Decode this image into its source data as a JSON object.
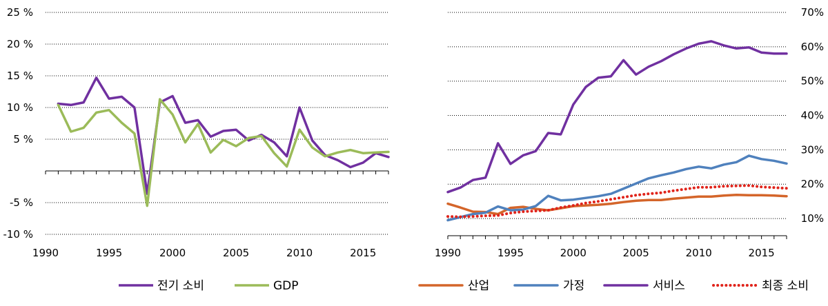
{
  "chart_data": [
    {
      "type": "line",
      "x": [
        1991,
        1992,
        1993,
        1994,
        1995,
        1996,
        1997,
        1998,
        1999,
        2000,
        2001,
        2002,
        2003,
        2004,
        2005,
        2006,
        2007,
        2008,
        2009,
        2010,
        2011,
        2012,
        2013,
        2014,
        2015,
        2016,
        2017
      ],
      "series": [
        {
          "name": "전기 소비",
          "color": "#7030A0",
          "values": [
            10.6,
            10.4,
            10.8,
            14.7,
            11.4,
            11.7,
            10.0,
            -3.6,
            10.8,
            11.8,
            7.6,
            8.0,
            5.4,
            6.3,
            6.5,
            4.8,
            5.7,
            4.5,
            2.3,
            10.0,
            4.8,
            2.5,
            1.7,
            0.6,
            1.3,
            2.8,
            2.2
          ]
        },
        {
          "name": "GDP",
          "color": "#9BBB59",
          "values": [
            10.4,
            6.2,
            6.8,
            9.2,
            9.6,
            7.6,
            5.9,
            -5.5,
            11.3,
            8.9,
            4.5,
            7.4,
            2.9,
            4.9,
            3.9,
            5.2,
            5.5,
            2.8,
            0.7,
            6.5,
            3.7,
            2.3,
            2.9,
            3.3,
            2.8,
            2.9,
            3.0
          ]
        }
      ],
      "yticks": [
        "25 %",
        "20 %",
        "15 %",
        "10 %",
        "5 %",
        "",
        "-5 %",
        "-10 %"
      ],
      "xticks": [
        "1990",
        "1995",
        "2000",
        "2005",
        "2010",
        "2015"
      ],
      "ylim": [
        -10,
        25
      ],
      "xlim": [
        1990,
        2017
      ],
      "grid": true,
      "legend_position": "bottom"
    },
    {
      "type": "line",
      "x": [
        1990,
        1991,
        1992,
        1993,
        1994,
        1995,
        1996,
        1997,
        1998,
        1999,
        2000,
        2001,
        2002,
        2003,
        2004,
        2005,
        2006,
        2007,
        2008,
        2009,
        2010,
        2011,
        2012,
        2013,
        2014,
        2015,
        2016,
        2017
      ],
      "series": [
        {
          "name": "산업",
          "color": "#D4652A",
          "values": [
            14.3,
            13.2,
            12.0,
            11.9,
            11.3,
            13.1,
            13.4,
            12.8,
            12.4,
            13.0,
            13.6,
            13.8,
            14.0,
            14.3,
            14.8,
            15.2,
            15.4,
            15.4,
            15.8,
            16.1,
            16.4,
            16.4,
            16.7,
            16.9,
            16.8,
            16.8,
            16.7,
            16.5
          ],
          "style": "solid"
        },
        {
          "name": "가정",
          "color": "#4F81BD",
          "values": [
            9.5,
            10.4,
            11.3,
            11.7,
            13.5,
            12.4,
            12.6,
            13.6,
            16.6,
            15.3,
            15.5,
            16.0,
            16.5,
            17.2,
            18.7,
            20.2,
            21.7,
            22.6,
            23.4,
            24.4,
            25.1,
            24.6,
            25.7,
            26.4,
            28.3,
            27.3,
            26.8,
            26.0
          ],
          "style": "solid"
        },
        {
          "name": "서비스",
          "color": "#7030A0",
          "values": [
            17.7,
            19.0,
            21.2,
            21.9,
            31.9,
            25.9,
            28.4,
            29.6,
            34.9,
            34.5,
            43.2,
            48.3,
            51.0,
            51.4,
            56.1,
            51.9,
            54.2,
            55.8,
            57.8,
            59.5,
            60.9,
            61.6,
            60.4,
            59.5,
            59.8,
            58.3,
            58.0,
            58.0
          ],
          "style": "solid"
        },
        {
          "name": "최종 소비",
          "color": "#E0241B",
          "values": [
            10.6,
            10.5,
            10.6,
            10.8,
            10.9,
            11.6,
            12.0,
            12.2,
            12.4,
            13.2,
            13.8,
            14.5,
            15.0,
            15.6,
            16.2,
            16.8,
            17.2,
            17.5,
            18.1,
            18.6,
            19.1,
            19.1,
            19.4,
            19.5,
            19.6,
            19.2,
            19.0,
            18.8
          ],
          "style": "dotted"
        }
      ],
      "yticks": [
        "70%",
        "60%",
        "50%",
        "40%",
        "30%",
        "20%",
        "10%"
      ],
      "xticks": [
        "1990",
        "1995",
        "2000",
        "2005",
        "2010",
        "2015"
      ],
      "ylim": [
        5,
        70
      ],
      "xlim": [
        1990,
        2017
      ],
      "grid": true,
      "legend_position": "bottom"
    }
  ]
}
